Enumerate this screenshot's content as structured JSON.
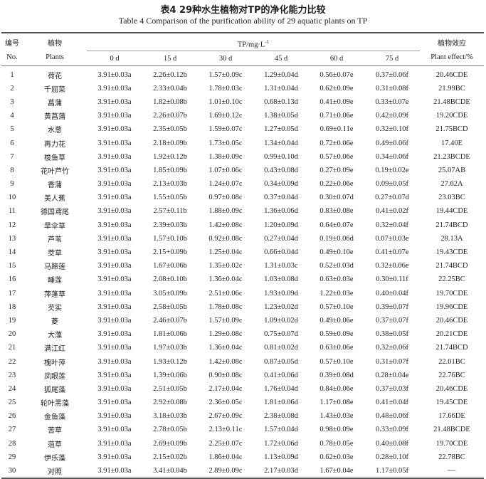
{
  "title_cn": "表4  29种水生植物对TP的净化能力比较",
  "title_en": "Table 4  Comparison of the purification ability of 29 aquatic plants on TP",
  "headers": {
    "no_cn": "编号",
    "no_en": "No.",
    "plant_cn": "植物",
    "plant_en": "Plants",
    "tp": "TP/mg·L",
    "tp_sup": "-1",
    "days": [
      "0 d",
      "15 d",
      "30 d",
      "45 d",
      "60 d",
      "75 d"
    ],
    "effect_cn": "植物效应",
    "effect_en": "Plant effect/%"
  },
  "rows": [
    [
      "1",
      "荷花",
      "3.91±0.03a",
      "2.26±0.12b",
      "1.57±0.09c",
      "1.29±0.04d",
      "0.56±0.07e",
      "0.37±0.06f",
      "20.46CDE"
    ],
    [
      "2",
      "千屈菜",
      "3.91±0.03a",
      "2.33±0.04b",
      "1.78±0.03c",
      "1.31±0.04d",
      "0.62±0.09e",
      "0.31±0.08f",
      "21.99BC"
    ],
    [
      "3",
      "菖蒲",
      "3.91±0.03a",
      "1.82±0.08b",
      "1.01±0.10c",
      "0.68±0.13d",
      "0.41±0.09e",
      "0.33±0.07e",
      "21.48BCDE"
    ],
    [
      "4",
      "黄菖蒲",
      "3.91±0.03a",
      "2.26±0.07b",
      "1.69±0.12c",
      "1.38±0.05d",
      "0.71±0.06e",
      "0.42±0.09f",
      "19.20CDE"
    ],
    [
      "5",
      "水葱",
      "3.91±0.03a",
      "2.35±0.05b",
      "1.59±0.07c",
      "1.27±0.05d",
      "0.69±0.11e",
      "0.32±0.10f",
      "21.75BCD"
    ],
    [
      "6",
      "再力花",
      "3.91±0.03a",
      "2.18±0.09b",
      "1.73±0.05c",
      "1.34±0.04d",
      "0.72±0.06e",
      "0.49±0.06f",
      "17.40E"
    ],
    [
      "7",
      "梭鱼草",
      "3.91±0.03a",
      "1.92±0.12b",
      "1.38±0.09c",
      "0.99±0.10d",
      "0.57±0.06e",
      "0.34±0.06f",
      "21.23BCDE"
    ],
    [
      "8",
      "花叶芦竹",
      "3.91±0.03a",
      "1.85±0.09b",
      "1.07±0.06c",
      "0.43±0.08d",
      "0.27±0.09e",
      "0.19±0.02e",
      "25.07AB"
    ],
    [
      "9",
      "香蒲",
      "3.91±0.03a",
      "2.13±0.03b",
      "1.24±0.07c",
      "0.34±0.09d",
      "0.22±0.06e",
      "0.09±0.05f",
      "27.62A"
    ],
    [
      "10",
      "美人蕉",
      "3.91±0.03a",
      "1.55±0.05b",
      "0.97±0.08c",
      "0.37±0.04d",
      "0.30±0.07d",
      "0.27±0.07d",
      "23.03BC"
    ],
    [
      "11",
      "德国鸢尾",
      "3.91±0.03a",
      "2.57±0.11b",
      "1.88±0.09c",
      "1.36±0.06d",
      "0.83±0.08e",
      "0.41±0.02f",
      "19.44CDE"
    ],
    [
      "12",
      "旱伞草",
      "3.91±0.03a",
      "2.39±0.03b",
      "1.42±0.08c",
      "1.20±0.09d",
      "0.64±0.07e",
      "0.32±0.04f",
      "21.74BCD"
    ],
    [
      "13",
      "芦苇",
      "3.91±0.03a",
      "1.57±0.10b",
      "0.92±0.08c",
      "0.27±0.04d",
      "0.19±0.06d",
      "0.07±0.03e",
      "28.13A"
    ],
    [
      "14",
      "茭草",
      "3.91±0.03a",
      "2.15+0.09b",
      "1.25±0.04c",
      "0.66±0.04d",
      "0.49±0.10e",
      "0.41±0.07e",
      "19.43CDE"
    ],
    [
      "15",
      "马蹄莲",
      "3.91±0.03a",
      "1.67±0.06b",
      "1.35±0.02c",
      "1.31±0.03c",
      "0.52±0.03d",
      "0.32±0.06e",
      "21.74BCD"
    ],
    [
      "16",
      "睡莲",
      "3.91±0.03a",
      "2.08±0.10b",
      "1.36±0.04c",
      "1.03±0.08d",
      "0.63±0.03e",
      "0.30±0.11f",
      "22.25BC"
    ],
    [
      "17",
      "萍蓬草",
      "3.91±0.03a",
      "3.05±0.09b",
      "2.51±0.06c",
      "1.93±0.09d",
      "1.22±0.03e",
      "0.40±0.04f",
      "19.70CDE"
    ],
    [
      "18",
      "芡实",
      "3.91±0.03a",
      "2.58±0.05b",
      "1.78±0.08c",
      "1.23±0.02d",
      "0.57±0.10e",
      "0.39±0.07f",
      "19.96CDE"
    ],
    [
      "19",
      "菱",
      "3.91±0.03a",
      "2.46±0.07b",
      "1.57±0.09c",
      "1.09±0.02d",
      "0.49±0.06e",
      "0.37±0.07f",
      "20.46CDE"
    ],
    [
      "20",
      "大薸",
      "3.91±0.03a",
      "1.81±0.06b",
      "1.29±0.08c",
      "0.75±0.07d",
      "0.59±0.09e",
      "0.38±0.05f",
      "20.21CDE"
    ],
    [
      "21",
      "满江红",
      "3.91±0.03a",
      "1.97±0.03b",
      "1.36±0.04c",
      "0.81±0.02d",
      "0.63±0.06e",
      "0.32±0.06f",
      "21.74BCD"
    ],
    [
      "22",
      "槐叶萍",
      "3.91±0.03a",
      "1.93±0.12b",
      "1.42±0.08c",
      "0.87±0.05d",
      "0.57±0.10e",
      "0.31±0.07f",
      "22.01BC"
    ],
    [
      "23",
      "凤眼莲",
      "3.91±0.03a",
      "1.39±0.06b",
      "0.90±0.08c",
      "0.41±0.06d",
      "0.39±0.08d",
      "0.28±0.04e",
      "22.76BC"
    ],
    [
      "24",
      "狐尾藻",
      "3.91±0.03a",
      "2.51±0.05b",
      "2.17±0.04c",
      "1.76±0.04d",
      "0.84±0.06e",
      "0.37±0.03f",
      "20.46CDE"
    ],
    [
      "25",
      "轮叶黑藻",
      "3.91±0.03a",
      "2.92±0.08b",
      "2.36±0.05c",
      "1.81±0.06d",
      "1.17±0.08e",
      "0.41±0.04f",
      "19.45CDE"
    ],
    [
      "26",
      "金鱼藻",
      "3.91±0.03a",
      "3.18±0.03b",
      "2.67±0.09c",
      "2.38±0.08d",
      "1.43±0.03e",
      "0.48±0.06f",
      "17.66DE"
    ],
    [
      "27",
      "苦草",
      "3.91±0.03a",
      "2.78±0.05b",
      "2.13±0.11c",
      "1.57±0.04d",
      "0.98±0.09e",
      "0.33±0.09f",
      "21.48BCDE"
    ],
    [
      "28",
      "菹草",
      "3.91±0.03a",
      "2.69±0.09b",
      "2.25±0.07c",
      "1.72±0.06d",
      "0.78±0.05e",
      "0.40±0.08f",
      "19.70CDE"
    ],
    [
      "29",
      "伊乐藻",
      "3.91±0.03a",
      "2.15±0.02b",
      "1.86±0.04c",
      "1.13±0.09d",
      "0.62±0.03e",
      "0.28±0.10f",
      "22.78BC"
    ],
    [
      "30",
      "对照",
      "3.91±0.03a",
      "3.41±0.04b",
      "2.89±0.09c",
      "2.17±0.03d",
      "1.67±0.04e",
      "1.17±0.05f",
      "—"
    ]
  ]
}
